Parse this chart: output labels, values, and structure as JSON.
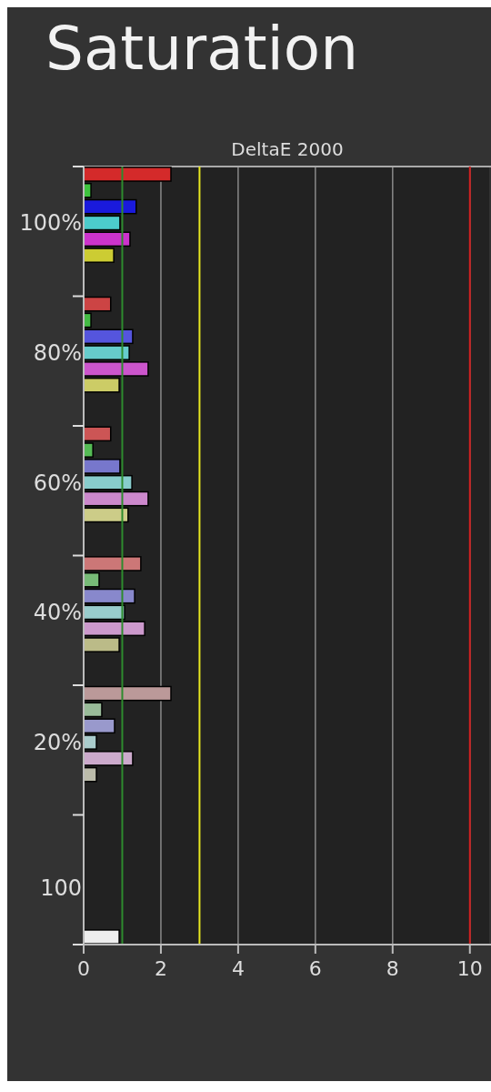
{
  "chart_data": {
    "type": "bar",
    "orientation": "horizontal",
    "title": "Saturation",
    "xlabel": "DeltaE 2000",
    "categories": [
      null,
      null,
      null,
      "100%",
      null,
      null,
      null,
      null,
      null,
      null,
      null,
      "80%",
      null,
      null,
      null,
      null,
      null,
      null,
      null,
      "60%",
      null,
      null,
      null,
      null,
      null,
      null,
      null,
      "40%",
      null,
      null,
      null,
      null,
      null,
      null,
      null,
      "20%",
      null,
      null,
      null,
      null,
      null,
      null,
      null,
      null,
      "100",
      null,
      null,
      null
    ],
    "values": [
      2.26,
      0.19,
      1.36,
      0.94,
      1.2,
      0.78,
      null,
      null,
      0.7,
      0.19,
      1.27,
      1.18,
      1.67,
      0.92,
      null,
      null,
      0.7,
      0.24,
      0.94,
      1.25,
      1.67,
      1.15,
      null,
      null,
      1.48,
      0.4,
      1.32,
      1.06,
      1.58,
      0.92,
      null,
      null,
      2.26,
      0.47,
      0.8,
      0.33,
      1.27,
      0.33,
      null,
      null,
      null,
      null,
      null,
      null,
      null,
      null,
      null,
      0.92
    ],
    "colors": [
      "#d42a2a",
      "#3ec43e",
      "#1a1adc",
      "#4ccccc",
      "#cc33cc",
      "#cccc33",
      null,
      null,
      "#cc4444",
      "#44bb44",
      "#5555dd",
      "#66cccc",
      "#cc55cc",
      "#cccc66",
      null,
      null,
      "#cc5555",
      "#55bb55",
      "#7777cc",
      "#88cccc",
      "#cc88cc",
      "#cccc88",
      null,
      null,
      "#cc7777",
      "#77bb77",
      "#8888cc",
      "#99cccc",
      "#cc99cc",
      "#bbbb88",
      null,
      null,
      "#bb9999",
      "#99bb99",
      "#9999cc",
      "#aacccc",
      "#ccaacc",
      "#bbbbaa",
      null,
      null,
      null,
      null,
      null,
      null,
      null,
      null,
      null,
      "#eeeeee"
    ],
    "xlim": [
      0,
      10.5
    ],
    "xticks": [
      0,
      2,
      4,
      6,
      8,
      10
    ],
    "grid": "x",
    "ref_lines": [
      {
        "axis": "x",
        "value": 1,
        "color": "#2e8b2e"
      },
      {
        "axis": "x",
        "value": 3,
        "color": "#e8e820"
      },
      {
        "axis": "x",
        "value": 10,
        "color": "#d02020"
      }
    ]
  }
}
